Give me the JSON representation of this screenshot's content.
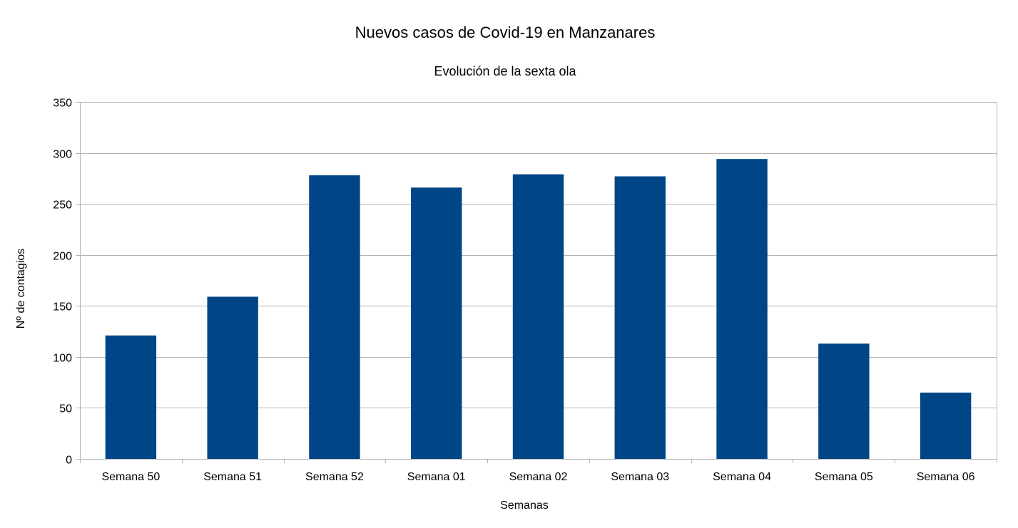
{
  "chart_data": {
    "type": "bar",
    "title": "Nuevos casos de Covid-19 en Manzanares",
    "subtitle": "Evolución de la sexta ola",
    "xlabel": "Semanas",
    "ylabel": "Nº de contagios",
    "categories": [
      "Semana 50",
      "Semana 51",
      "Semana 52",
      "Semana 01",
      "Semana 02",
      "Semana 03",
      "Semana 04",
      "Semana 05",
      "Semana 06"
    ],
    "values": [
      121,
      159,
      278,
      266,
      279,
      277,
      294,
      113,
      65
    ],
    "ylim": [
      0,
      350
    ],
    "yticks": [
      0,
      50,
      100,
      150,
      200,
      250,
      300,
      350
    ],
    "grid": true,
    "legend": "none",
    "bar_color": "#004586",
    "grid_color": "#b3b3b3"
  }
}
